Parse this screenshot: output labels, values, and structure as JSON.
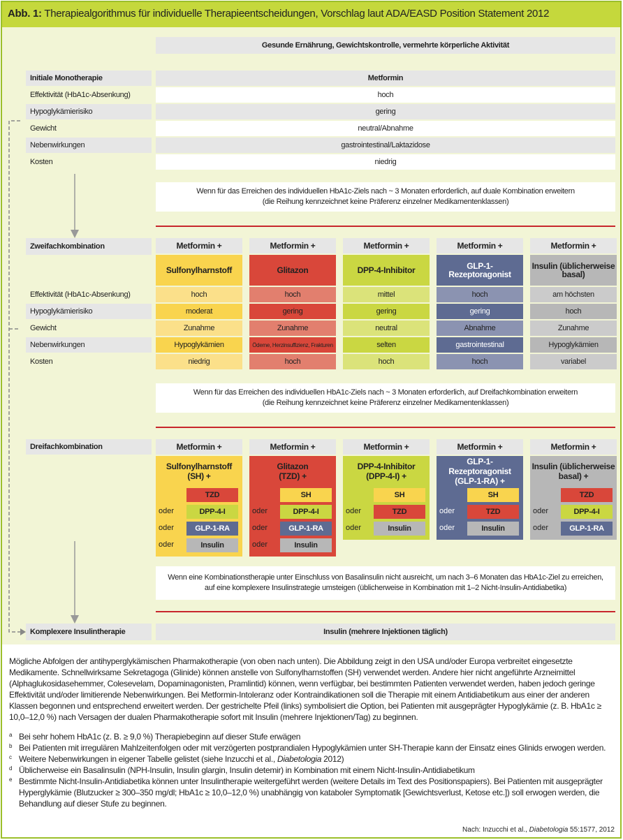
{
  "title": {
    "prefix": "Abb. 1:",
    "text": "Therapiealgorithmus für individuelle Therapieentscheidungen, Vorschlag laut ADA/EASD Position Statement 2012"
  },
  "lifestyle": "Gesunde Ernährung, Gewichtskontrolle, vermehrte körperliche Aktivität",
  "mono": {
    "label": "Initiale Monotherapie",
    "drug": "Metformin",
    "rows": [
      {
        "label": "Effektivität (HbA1c-Absenkung)",
        "value": "hoch"
      },
      {
        "label": "Hypoglykämierisiko",
        "value": "gering"
      },
      {
        "label": "Gewicht",
        "value": "neutral/Abnahme"
      },
      {
        "label": "Nebenwirkungen",
        "value": "gastrointestinal/Laktazidose"
      },
      {
        "label": "Kosten",
        "value": "niedrig"
      }
    ]
  },
  "note1": {
    "line1": "Wenn für das Erreichen des individuellen HbA1c-Ziels nach ~ 3 Monaten erforderlich, auf duale Kombination erweitern",
    "line2": "(die Reihung kennzeichnet keine Präferenz einzelner Medikamentenklassen)"
  },
  "dual": {
    "label": "Zweifachkombination",
    "row_labels": [
      "Effektivität (HbA1c-Absenkung)",
      "Hypoglykämierisiko",
      "Gewicht",
      "Nebenwirkungen",
      "Kosten"
    ],
    "columns": [
      {
        "head": "Metformin +",
        "drug": "Sulfonylharnstoff",
        "values": [
          "hoch",
          "moderat",
          "Zunahme",
          "Hypoglykämien",
          "niedrig"
        ]
      },
      {
        "head": "Metformin +",
        "drug": "Glitazon",
        "values": [
          "hoch",
          "gering",
          "Zunahme",
          "Ödeme, Herzinsuffizienz, Frakturen",
          "hoch"
        ]
      },
      {
        "head": "Metformin +",
        "drug": "DPP-4-Inhibitor",
        "values": [
          "mittel",
          "gering",
          "neutral",
          "selten",
          "hoch"
        ]
      },
      {
        "head": "Metformin +",
        "drug": "GLP-1-Rezeptoragonist",
        "values": [
          "hoch",
          "gering",
          "Abnahme",
          "gastrointestinal",
          "hoch"
        ]
      },
      {
        "head": "Metformin +",
        "drug": "Insulin (üblicherweise basal)",
        "values": [
          "am höchsten",
          "hoch",
          "Zunahme",
          "Hypoglykämien",
          "variabel"
        ]
      }
    ]
  },
  "note2": {
    "line1": "Wenn für das Erreichen des individuellen HbA1c-Ziels nach ~ 3 Monaten erforderlich, auf Dreifachkombination erweitern",
    "line2": "(die Reihung kennzeichnet keine Präferenz einzelner Medikamentenklassen)"
  },
  "triple": {
    "label": "Dreifachkombination",
    "oder": "oder",
    "columns": [
      {
        "head": "Metformin +",
        "drug_line1": "Sulfonylharnstoff",
        "drug_line2": "(SH) +",
        "options": [
          "TZD",
          "DPP-4-I",
          "GLP-1-RA",
          "Insulin"
        ]
      },
      {
        "head": "Metformin +",
        "drug_line1": "Glitazon",
        "drug_line2": "(TZD) +",
        "options": [
          "SH",
          "DPP-4-I",
          "GLP-1-RA",
          "Insulin"
        ]
      },
      {
        "head": "Metformin +",
        "drug_line1": "DPP-4-Inhibitor",
        "drug_line2": "(DPP-4-I) +",
        "options": [
          "SH",
          "TZD",
          "Insulin"
        ]
      },
      {
        "head": "Metformin +",
        "drug_line1": "GLP-1-Rezeptoragonist",
        "drug_line2": "(GLP-1-RA) +",
        "options": [
          "SH",
          "TZD",
          "Insulin"
        ]
      },
      {
        "head": "Metformin +",
        "drug_line1": "Insulin (üblicherweise",
        "drug_line2": "basal) +",
        "options": [
          "TZD",
          "DPP-4-I",
          "GLP-1-RA"
        ]
      }
    ]
  },
  "note3": {
    "line1": "Wenn eine Kombinationstherapie unter Einschluss von Basalinsulin nicht ausreicht, um nach 3–6 Monaten das HbA1c-Ziel zu erreichen,",
    "line2": "auf eine komplexere Insulinstrategie umsteigen (üblicherweise in Kombination mit 1–2 Nicht-Insulin-Antidiabetika)"
  },
  "complex": {
    "label": "Komplexere Insulintherapie",
    "value": "Insulin (mehrere Injektionen täglich)"
  },
  "caption": "Mögliche Abfolgen der antihyperglykämischen Pharmakotherapie (von oben nach unten). Die Abbildung zeigt in den USA und/oder Europa verbreitet eingesetzte Medikamente. Schnellwirksame Sekretagoga (Glinide) können anstelle von Sulfonylharnstoffen (SH) verwendet werden. Andere hier nicht angeführte Arzneimittel (Alphaglukosidasehemmer, Colesevelam, Dopaminagonisten, Pramlintid) können, wenn verfügbar, bei bestimmten Patienten verwendet werden, haben jedoch geringe Effektivität und/oder limitierende Nebenwirkungen. Bei Metformin-Intoleranz oder Kontraindikationen soll die Therapie mit einem Antidiabetikum aus einer der anderen Klassen begonnen und entsprechend erweitert werden. Der gestrichelte Pfeil (links) symbolisiert die Option, bei Patienten mit ausgeprägter Hypoglykämie (z. B. HbA1c ≥ 10,0–12,0 %) nach Versagen der dualen Pharmakotherapie sofort mit Insulin (mehrere Injektionen/Tag) zu beginnen.",
  "footnotes": [
    {
      "mark": "a",
      "text": "Bei sehr hohem HbA1c (z. B. ≥ 9,0 %) Therapiebeginn auf dieser Stufe erwägen"
    },
    {
      "mark": "b",
      "text": "Bei Patienten mit irregulären Mahlzeitenfolgen oder mit verzögerten postprandialen Hypoglykämien unter SH-Therapie kann der Einsatz eines Glinids erwogen werden."
    },
    {
      "mark": "c",
      "text_before": "Weitere Nebenwirkungen in eigener Tabelle gelistet (siehe Inzucchi et al., ",
      "text_italic": "Diabetologia",
      "text_after": " 2012)"
    },
    {
      "mark": "d",
      "text": "Üblicherweise ein Basalinsulin (NPH-Insulin, Insulin glargin, Insulin detemir) in Kombination mit einem Nicht-Insulin-Antidiabetikum"
    },
    {
      "mark": "e",
      "text": "Bestimmte Nicht-Insulin-Antidiabetika können unter Insulintherapie weitergeführt werden (weitere Details im Text des Positionspapiers). Bei Patienten mit ausgeprägter Hyperglykämie (Blutzucker ≥ 300–350 mg/dl; HbA1c ≥ 10,0–12,0 %) unabhängig von kataboler Symptomatik [Gewichtsverlust, Ketose etc.]) soll erwogen werden, die Behandlung auf dieser Stufe zu beginnen."
    }
  ],
  "source": {
    "before": "Nach: Inzucchi et al., ",
    "italic": "Diabetologia",
    "after": " 55:1577, 2012"
  },
  "colors": {
    "title_bar": "#c5d83c",
    "frame": "#9bbf2a",
    "diagram_bg": "#f2f5d6",
    "sulfonylharnstoff": [
      "#f9d44e",
      "#fbe08a",
      "#fce9ae"
    ],
    "glitazon": [
      "#d9473a",
      "#e27f6e",
      "#e99a8c"
    ],
    "dpp4": [
      "#cad742",
      "#dbe37a",
      "#e4ea9c"
    ],
    "glp1": [
      "#5e6b92",
      "#8b93b1",
      "#a3aac2"
    ],
    "insulin": [
      "#b7b7b7",
      "#cbcbcb",
      "#d9d9d9"
    ],
    "divider": "#c8262c"
  }
}
